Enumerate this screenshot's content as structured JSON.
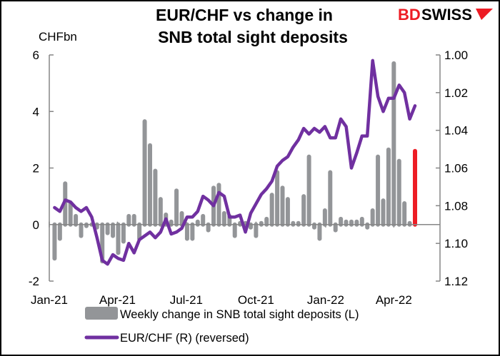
{
  "chart_data": {
    "type": "bar+line",
    "title_lines": [
      "EUR/CHF vs change in",
      "SNB total sight deposits"
    ],
    "logo": {
      "text_red": "BD",
      "text_black": "SWISS"
    },
    "left_axis": {
      "label": "CHFbn",
      "ylim": [
        -2,
        6
      ],
      "ticks": [
        "-2",
        "0",
        "2",
        "4",
        "6"
      ]
    },
    "right_axis": {
      "ylim": [
        1.0,
        1.12
      ],
      "reversed": true,
      "ticks": [
        "1.00",
        "1.02",
        "1.04",
        "1.06",
        "1.08",
        "1.10",
        "1.12"
      ]
    },
    "x_axis": {
      "xlim": [
        "2021-01-01",
        "2022-06-01"
      ],
      "ticks": [
        {
          "date": "2021-01-01",
          "label": "Jan-21"
        },
        {
          "date": "2021-04-01",
          "label": "Apr-21"
        },
        {
          "date": "2021-07-01",
          "label": "Jul-21"
        },
        {
          "date": "2021-10-01",
          "label": "Oct-21"
        },
        {
          "date": "2022-01-01",
          "label": "Jan-22"
        },
        {
          "date": "2022-04-01",
          "label": "Apr-22"
        }
      ]
    },
    "dates": [
      "2021-01-08",
      "2021-01-15",
      "2021-01-22",
      "2021-01-29",
      "2021-02-05",
      "2021-02-12",
      "2021-02-19",
      "2021-02-26",
      "2021-03-05",
      "2021-03-12",
      "2021-03-19",
      "2021-03-26",
      "2021-04-02",
      "2021-04-09",
      "2021-04-16",
      "2021-04-23",
      "2021-04-30",
      "2021-05-07",
      "2021-05-14",
      "2021-05-21",
      "2021-05-28",
      "2021-06-04",
      "2021-06-11",
      "2021-06-18",
      "2021-06-25",
      "2021-07-02",
      "2021-07-09",
      "2021-07-16",
      "2021-07-23",
      "2021-07-30",
      "2021-08-06",
      "2021-08-13",
      "2021-08-20",
      "2021-08-27",
      "2021-09-03",
      "2021-09-10",
      "2021-09-17",
      "2021-09-24",
      "2021-10-01",
      "2021-10-08",
      "2021-10-15",
      "2021-10-22",
      "2021-10-29",
      "2021-11-05",
      "2021-11-12",
      "2021-11-19",
      "2021-11-26",
      "2021-12-03",
      "2021-12-10",
      "2021-12-17",
      "2021-12-24",
      "2021-12-31",
      "2022-01-07",
      "2022-01-14",
      "2022-01-21",
      "2022-01-28",
      "2022-02-04",
      "2022-02-11",
      "2022-02-18",
      "2022-02-25",
      "2022-03-04",
      "2022-03-11",
      "2022-03-18",
      "2022-03-25",
      "2022-04-01",
      "2022-04-08",
      "2022-04-15",
      "2022-04-22",
      "2022-04-29"
    ],
    "series": [
      {
        "name": "Weekly change in SNB total sight deposits (L)",
        "type": "bar",
        "axis": "left",
        "color": "#939598",
        "highlight_last_color": "#ed1c24",
        "values": [
          -1.2,
          -0.5,
          1.45,
          0.75,
          0.3,
          -0.4,
          -0.05,
          0,
          -0.1,
          -1.3,
          -0.3,
          -0.4,
          -1.0,
          -0.6,
          0.3,
          0.3,
          -0.5,
          3.65,
          2.8,
          1.9,
          0.9,
          0.35,
          0.1,
          1.2,
          0.4,
          -0.5,
          -0.5,
          0.1,
          0.3,
          -0.2,
          1.3,
          1.4,
          0.4,
          0.3,
          -0.4,
          0.05,
          0.05,
          -0.1,
          -0.4,
          0.05,
          0.2,
          1.05,
          1.85,
          1.3,
          0.9,
          0.05,
          0.05,
          1.0,
          2.4,
          -0.1,
          -0.5,
          0.5,
          1.85,
          -0.2,
          0.2,
          0.1,
          0.1,
          0.1,
          0.2,
          -0.1,
          0.5,
          2.4,
          0.85,
          2.65,
          5.7,
          2.25,
          0.75,
          0.05,
          2.6
        ]
      },
      {
        "name": "EUR/CHF (R) (reversed)",
        "type": "line",
        "axis": "right",
        "color": "#7030a0",
        "values": [
          1.081,
          1.083,
          1.077,
          1.078,
          1.081,
          1.083,
          1.081,
          1.086,
          1.097,
          1.109,
          1.111,
          1.106,
          1.108,
          1.109,
          1.1,
          1.105,
          1.098,
          1.096,
          1.094,
          1.097,
          1.094,
          1.087,
          1.095,
          1.094,
          1.092,
          1.086,
          1.086,
          1.083,
          1.075,
          1.077,
          1.08,
          1.073,
          1.075,
          1.086,
          1.086,
          1.085,
          1.094,
          1.084,
          1.079,
          1.074,
          1.071,
          1.067,
          1.059,
          1.056,
          1.054,
          1.049,
          1.045,
          1.039,
          1.042,
          1.039,
          1.041,
          1.038,
          1.044,
          1.044,
          1.034,
          1.038,
          1.06,
          1.052,
          1.043,
          1.043,
          1.003,
          1.022,
          1.03,
          1.023,
          1.023,
          1.016,
          1.02,
          1.034,
          1.027
        ]
      }
    ],
    "legend": {
      "placement": "bottom"
    }
  }
}
